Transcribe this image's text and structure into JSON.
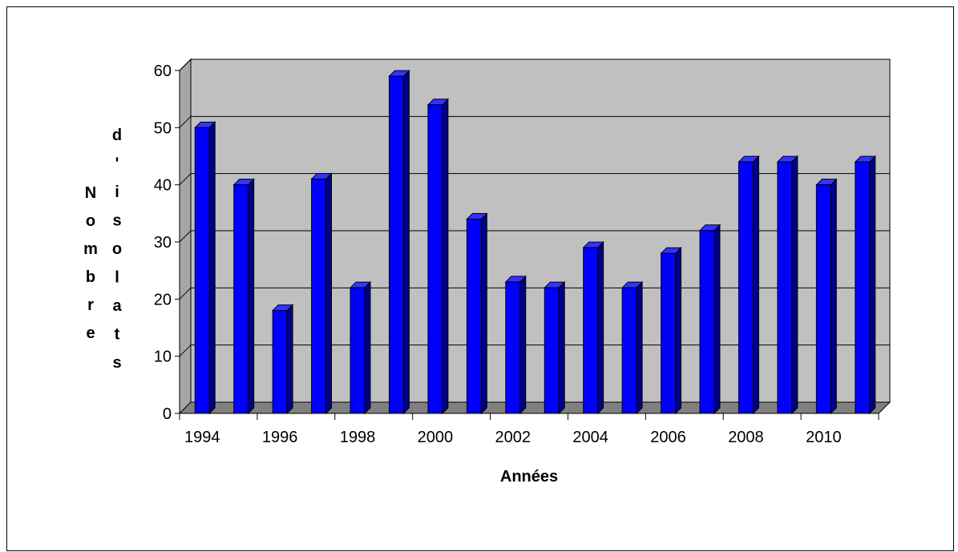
{
  "chart_data": {
    "type": "bar",
    "style": "3d-column",
    "title": "",
    "xlabel": "Années",
    "ylabel_left": "Nombre",
    "ylabel_right": "d'isolats",
    "ylim": [
      0,
      60
    ],
    "yticks": [
      0,
      10,
      20,
      30,
      40,
      50,
      60
    ],
    "grid": true,
    "legend": "none",
    "colors": {
      "bar": "#0000ff",
      "bar_side": "#00008b",
      "bar_top": "#3333ff",
      "wall": "#c0c0c0",
      "floor": "#808080",
      "gridline": "#000000"
    },
    "categories": [
      "1994",
      "1995",
      "1996",
      "1997",
      "1998",
      "1999",
      "2000",
      "2001",
      "2002",
      "2003",
      "2004",
      "2005",
      "2006",
      "2007",
      "2008",
      "2009",
      "2010",
      "2011"
    ],
    "x_tick_labels": [
      "1994",
      "1996",
      "1998",
      "2000",
      "2002",
      "2004",
      "2006",
      "2008",
      "2010"
    ],
    "series": [
      {
        "values": [
          50,
          40,
          18,
          41,
          22,
          59,
          54,
          34,
          23,
          22,
          29,
          22,
          28,
          32,
          44,
          44,
          40,
          44
        ]
      }
    ]
  }
}
